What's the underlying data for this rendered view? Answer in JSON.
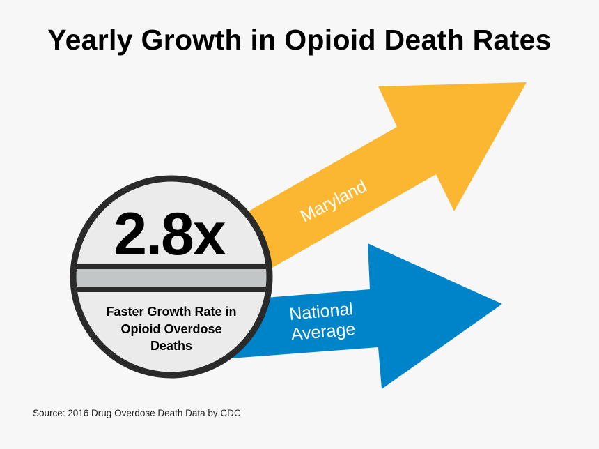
{
  "title": "Yearly Growth in Opioid Death Rates",
  "badge": {
    "multiplier": "2.8x",
    "caption_lines": [
      "Faster Growth Rate in",
      "Opioid Overdose",
      "Deaths"
    ]
  },
  "arrows": {
    "maryland": {
      "label": "Maryland",
      "color": "#fbb731"
    },
    "national": {
      "label_lines": [
        "National",
        "Average"
      ],
      "color": "#0084c9"
    }
  },
  "colors": {
    "background": "#f7f7f7",
    "badge_fill": "#ebebeb",
    "badge_band": "#c3c6c6",
    "badge_outline": "#2a2a2a"
  },
  "source": "Source: 2016 Drug Overdose Death Data by CDC"
}
